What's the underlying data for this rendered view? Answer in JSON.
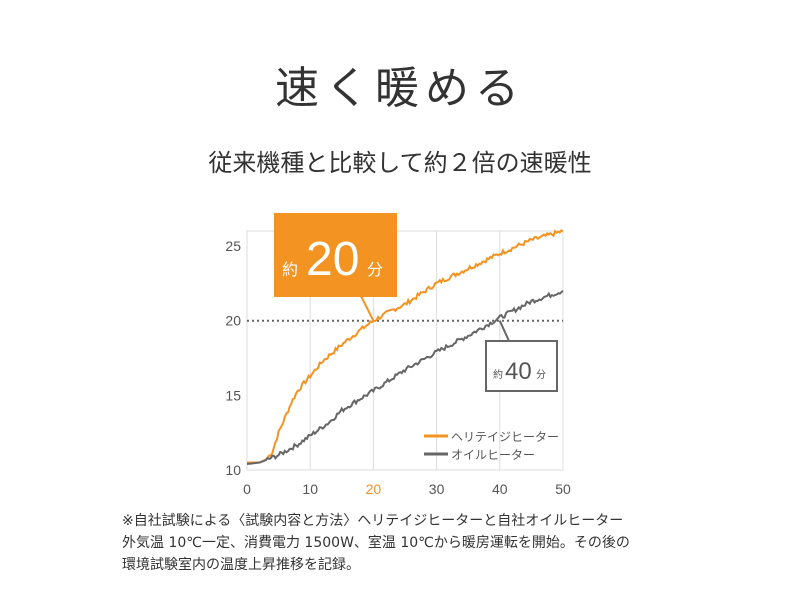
{
  "header": {
    "title": "速く暖める",
    "subtitle": "従来機種と比較して約２倍の速暖性"
  },
  "chart_data": {
    "type": "line",
    "xlim": [
      0,
      50
    ],
    "ylim": [
      10,
      26
    ],
    "x_ticks": [
      "0",
      "10",
      "20",
      "30",
      "40",
      "50"
    ],
    "y_ticks": [
      "10",
      "15",
      "20",
      "25"
    ],
    "grid": true,
    "reference_line": 20,
    "legend_position": "bottom-right",
    "series": [
      {
        "name": "ヘリテイジヒーター",
        "color": "#f39322",
        "x": [
          0,
          2,
          3,
          4,
          5,
          6,
          7,
          8,
          10,
          12,
          15,
          18,
          20,
          23,
          25,
          30,
          35,
          40,
          45,
          50
        ],
        "y": [
          10.5,
          10.5,
          10.7,
          11.2,
          12.5,
          13.5,
          14.5,
          15.3,
          16.3,
          17.3,
          18.4,
          19.4,
          20.0,
          20.7,
          21.1,
          22.5,
          23.5,
          24.5,
          25.4,
          26.0
        ]
      },
      {
        "name": "オイルヒーター",
        "color": "#666666",
        "x": [
          0,
          2,
          5,
          8,
          10,
          13,
          15,
          18,
          20,
          25,
          30,
          35,
          40,
          45,
          50
        ],
        "y": [
          10.4,
          10.5,
          11.0,
          11.7,
          12.3,
          13.2,
          14.0,
          14.8,
          15.3,
          16.7,
          17.9,
          19.0,
          20.2,
          21.3,
          22.0
        ]
      }
    ],
    "annotations": [
      {
        "prefix": "約",
        "value": "20",
        "suffix": "分",
        "x": 20,
        "color": "#f39322"
      },
      {
        "prefix": "約",
        "value": "40",
        "suffix": "分",
        "x": 40,
        "color": "#666666"
      }
    ],
    "highlight_tick": "20",
    "highlight_color": "#f39322"
  },
  "footnote": [
    "※自社試験による〈試験内容と方法〉ヘリテイジヒーターと自社オイルヒーター",
    "外気温 10℃一定、消費電力 1500W、室温 10℃から暖房運転を開始。その後の",
    "環境試験室内の温度上昇推移を記録。"
  ]
}
